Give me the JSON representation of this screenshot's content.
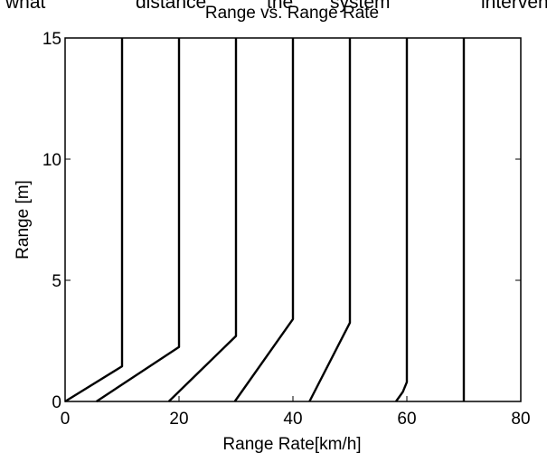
{
  "surrounding_text": [
    "what",
    "distance",
    "the",
    "system",
    "interven"
  ],
  "chart_data": {
    "type": "line",
    "title": "Range vs. Range Rate",
    "xlabel": "Range Rate[km/h]",
    "ylabel": "Range [m]",
    "xlim": [
      0,
      80
    ],
    "ylim": [
      0,
      15
    ],
    "xticks": [
      "0",
      "20",
      "40",
      "60",
      "80"
    ],
    "yticks": [
      "0",
      "5",
      "10",
      "15"
    ],
    "grid": false,
    "legend": "none",
    "line_color": "#000000",
    "series": [
      {
        "x": [
          0,
          10,
          10
        ],
        "y": [
          0,
          1.45,
          15
        ]
      },
      {
        "x": [
          5.5,
          20,
          20
        ],
        "y": [
          0,
          2.25,
          15
        ]
      },
      {
        "x": [
          18.2,
          30,
          30
        ],
        "y": [
          0,
          2.7,
          15
        ]
      },
      {
        "x": [
          29.8,
          40,
          40
        ],
        "y": [
          0,
          3.4,
          15
        ]
      },
      {
        "x": [
          42.9,
          50,
          50
        ],
        "y": [
          0,
          3.25,
          15
        ]
      },
      {
        "x": [
          58.1,
          59.3,
          60,
          60
        ],
        "y": [
          0,
          0.4,
          0.8,
          15
        ]
      },
      {
        "x": [
          70,
          70
        ],
        "y": [
          0,
          15
        ]
      }
    ]
  }
}
